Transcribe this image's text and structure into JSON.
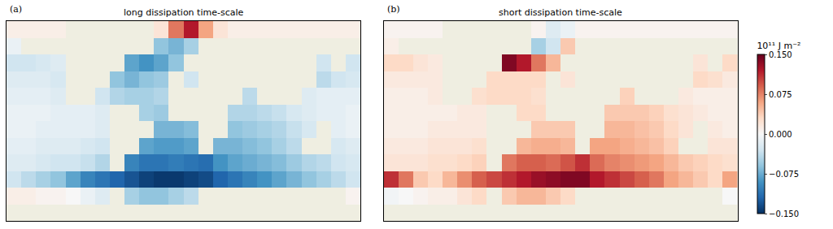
{
  "chart_data": [
    {
      "type": "heatmap",
      "label": "(a)",
      "title": "long dissipation time-scale",
      "tick_labels": false,
      "xlim": [
        -180,
        180
      ],
      "ylim": [
        -90,
        90
      ],
      "x": [
        -172.5,
        -157.5,
        -142.5,
        -127.5,
        -112.5,
        -97.5,
        -82.5,
        -67.5,
        -52.5,
        -37.5,
        -22.5,
        -7.5,
        7.5,
        22.5,
        37.5,
        52.5,
        67.5,
        82.5,
        97.5,
        112.5,
        127.5,
        142.5,
        157.5,
        172.5
      ],
      "y": [
        -82.5,
        -67.5,
        -52.5,
        -37.5,
        -22.5,
        -7.5,
        7.5,
        22.5,
        37.5,
        52.5,
        67.5,
        82.5
      ],
      "z": [
        [
          null,
          null,
          null,
          null,
          null,
          null,
          null,
          null,
          null,
          null,
          null,
          null,
          null,
          null,
          null,
          null,
          null,
          null,
          null,
          null,
          null,
          null,
          null,
          null
        ],
        [
          0.01,
          0.01,
          0.005,
          0.005,
          0.0,
          -0.01,
          -0.02,
          null,
          -0.05,
          -0.06,
          -0.06,
          -0.05,
          -0.04,
          null,
          null,
          null,
          null,
          null,
          null,
          null,
          null,
          null,
          null,
          0.005
        ],
        [
          -0.03,
          -0.04,
          -0.05,
          -0.06,
          -0.08,
          -0.1,
          -0.11,
          -0.12,
          -0.13,
          -0.14,
          -0.145,
          -0.145,
          -0.14,
          -0.135,
          -0.12,
          -0.11,
          -0.1,
          -0.09,
          -0.08,
          -0.07,
          -0.06,
          -0.05,
          -0.04,
          -0.03
        ],
        [
          -0.02,
          -0.02,
          -0.025,
          -0.03,
          -0.03,
          -0.035,
          -0.045,
          null,
          -0.1,
          -0.11,
          -0.11,
          -0.105,
          -0.11,
          -0.115,
          -0.09,
          -0.08,
          -0.075,
          -0.07,
          -0.065,
          -0.055,
          -0.045,
          -0.04,
          -0.03,
          -0.025
        ],
        [
          -0.015,
          -0.015,
          -0.02,
          -0.02,
          -0.02,
          -0.025,
          -0.03,
          null,
          null,
          -0.08,
          -0.085,
          -0.085,
          -0.08,
          null,
          -0.07,
          -0.07,
          -0.065,
          -0.06,
          -0.05,
          -0.04,
          null,
          null,
          -0.025,
          -0.02
        ],
        [
          -0.01,
          -0.01,
          -0.015,
          -0.015,
          -0.015,
          -0.015,
          -0.02,
          null,
          null,
          null,
          -0.07,
          -0.07,
          -0.065,
          null,
          null,
          -0.06,
          -0.055,
          -0.05,
          -0.045,
          -0.035,
          -0.025,
          null,
          -0.015,
          -0.01
        ],
        [
          -0.01,
          -0.01,
          -0.01,
          -0.015,
          -0.015,
          -0.015,
          -0.02,
          null,
          null,
          -0.05,
          -0.055,
          null,
          null,
          null,
          null,
          -0.045,
          -0.045,
          -0.04,
          -0.035,
          -0.025,
          -0.02,
          -0.015,
          -0.015,
          -0.01
        ],
        [
          -0.015,
          -0.015,
          -0.015,
          -0.02,
          null,
          null,
          -0.03,
          -0.045,
          -0.05,
          -0.05,
          -0.045,
          null,
          null,
          null,
          null,
          null,
          -0.04,
          null,
          null,
          null,
          -0.02,
          -0.015,
          -0.015,
          -0.015
        ],
        [
          -0.02,
          -0.02,
          -0.02,
          -0.025,
          null,
          null,
          null,
          -0.06,
          -0.07,
          -0.06,
          -0.055,
          null,
          -0.03,
          null,
          null,
          null,
          null,
          null,
          null,
          null,
          null,
          -0.04,
          -0.03,
          -0.025
        ],
        [
          -0.03,
          -0.03,
          -0.025,
          -0.02,
          null,
          null,
          null,
          null,
          -0.08,
          -0.09,
          -0.08,
          -0.06,
          null,
          null,
          null,
          null,
          null,
          null,
          null,
          null,
          null,
          -0.03,
          null,
          -0.03
        ],
        [
          -0.01,
          null,
          null,
          null,
          null,
          null,
          null,
          null,
          null,
          null,
          -0.06,
          -0.07,
          -0.05,
          null,
          null,
          null,
          null,
          null,
          null,
          null,
          null,
          null,
          null,
          null
        ],
        [
          0.01,
          0.01,
          0.01,
          0.01,
          null,
          null,
          null,
          null,
          null,
          null,
          0.02,
          0.08,
          0.12,
          0.06,
          0.02,
          0.01,
          0.01,
          0.01,
          0.01,
          0.01,
          0.01,
          0.01,
          0.01,
          0.01
        ]
      ]
    },
    {
      "type": "heatmap",
      "label": "(b)",
      "title": "short dissipation time-scale",
      "tick_labels": false,
      "xlim": [
        -180,
        180
      ],
      "ylim": [
        -90,
        90
      ],
      "x": [
        -172.5,
        -157.5,
        -142.5,
        -127.5,
        -112.5,
        -97.5,
        -82.5,
        -67.5,
        -52.5,
        -37.5,
        -22.5,
        -7.5,
        7.5,
        22.5,
        37.5,
        52.5,
        67.5,
        82.5,
        97.5,
        112.5,
        127.5,
        142.5,
        157.5,
        172.5
      ],
      "y": [
        -82.5,
        -67.5,
        -52.5,
        -37.5,
        -22.5,
        -7.5,
        7.5,
        22.5,
        37.5,
        52.5,
        67.5,
        82.5
      ],
      "z": [
        [
          null,
          null,
          null,
          null,
          null,
          null,
          null,
          null,
          null,
          null,
          null,
          null,
          null,
          null,
          null,
          null,
          null,
          null,
          null,
          null,
          null,
          null,
          null,
          null
        ],
        [
          -0.005,
          0.0,
          0.005,
          0.01,
          0.01,
          0.02,
          0.03,
          null,
          0.04,
          0.05,
          0.05,
          0.04,
          0.03,
          null,
          null,
          null,
          null,
          null,
          null,
          null,
          null,
          null,
          null,
          0.0
        ],
        [
          0.11,
          0.08,
          0.04,
          0.03,
          0.05,
          0.07,
          0.09,
          0.1,
          0.11,
          0.12,
          0.13,
          0.135,
          0.14,
          0.14,
          0.12,
          0.11,
          0.1,
          0.09,
          0.08,
          0.06,
          0.05,
          0.04,
          0.03,
          0.06
        ],
        [
          0.02,
          0.02,
          0.02,
          0.025,
          0.025,
          0.03,
          0.035,
          null,
          0.08,
          0.09,
          0.09,
          0.085,
          0.095,
          0.11,
          0.085,
          0.075,
          0.07,
          0.065,
          0.06,
          0.05,
          0.04,
          0.035,
          0.03,
          0.025
        ],
        [
          0.015,
          0.015,
          0.015,
          0.02,
          0.02,
          0.02,
          0.025,
          null,
          null,
          0.05,
          0.055,
          0.055,
          0.05,
          null,
          0.06,
          0.06,
          0.055,
          0.05,
          0.045,
          0.035,
          null,
          null,
          0.02,
          0.02
        ],
        [
          0.01,
          0.01,
          0.01,
          0.015,
          0.015,
          0.015,
          0.015,
          null,
          null,
          null,
          0.04,
          0.04,
          0.04,
          null,
          null,
          0.05,
          0.05,
          0.045,
          0.04,
          0.03,
          0.02,
          null,
          0.015,
          0.01
        ],
        [
          0.01,
          0.01,
          0.01,
          0.01,
          0.01,
          0.015,
          0.015,
          null,
          null,
          0.03,
          0.03,
          null,
          null,
          null,
          null,
          0.04,
          0.04,
          0.04,
          0.035,
          0.025,
          0.02,
          0.015,
          0.01,
          0.01
        ],
        [
          0.01,
          0.01,
          0.01,
          0.015,
          null,
          null,
          0.025,
          0.03,
          0.03,
          0.03,
          0.025,
          null,
          null,
          null,
          null,
          null,
          0.035,
          null,
          null,
          null,
          0.015,
          0.01,
          0.01,
          0.01
        ],
        [
          0.015,
          0.015,
          0.015,
          0.015,
          null,
          null,
          null,
          0.03,
          0.03,
          0.03,
          0.03,
          null,
          0.02,
          null,
          null,
          null,
          null,
          null,
          null,
          null,
          null,
          0.03,
          0.025,
          0.015
        ],
        [
          0.03,
          0.03,
          0.02,
          0.015,
          null,
          null,
          null,
          null,
          0.14,
          0.12,
          0.08,
          0.05,
          null,
          null,
          null,
          null,
          null,
          null,
          null,
          null,
          null,
          0.02,
          null,
          0.03
        ],
        [
          0.01,
          null,
          null,
          null,
          null,
          null,
          null,
          null,
          null,
          null,
          -0.05,
          -0.03,
          0.04,
          null,
          null,
          null,
          null,
          null,
          null,
          null,
          null,
          null,
          null,
          null
        ],
        [
          0.005,
          0.005,
          0.005,
          0.005,
          null,
          null,
          null,
          null,
          null,
          null,
          0.005,
          -0.02,
          -0.01,
          0.005,
          0.005,
          0.005,
          0.005,
          0.005,
          0.005,
          0.005,
          0.005,
          0.005,
          0.005,
          0.005
        ]
      ],
      "colorbar": {
        "title": "10¹¹ J m⁻²",
        "range": [
          -0.15,
          0.15
        ],
        "ticks": [
          {
            "value": -0.15,
            "label": "−0.150"
          },
          {
            "value": -0.075,
            "label": "−0.075"
          },
          {
            "value": 0,
            "label": "0.000"
          },
          {
            "value": 0.075,
            "label": "0.075"
          },
          {
            "value": 0.15,
            "label": "0.150"
          }
        ]
      }
    }
  ]
}
